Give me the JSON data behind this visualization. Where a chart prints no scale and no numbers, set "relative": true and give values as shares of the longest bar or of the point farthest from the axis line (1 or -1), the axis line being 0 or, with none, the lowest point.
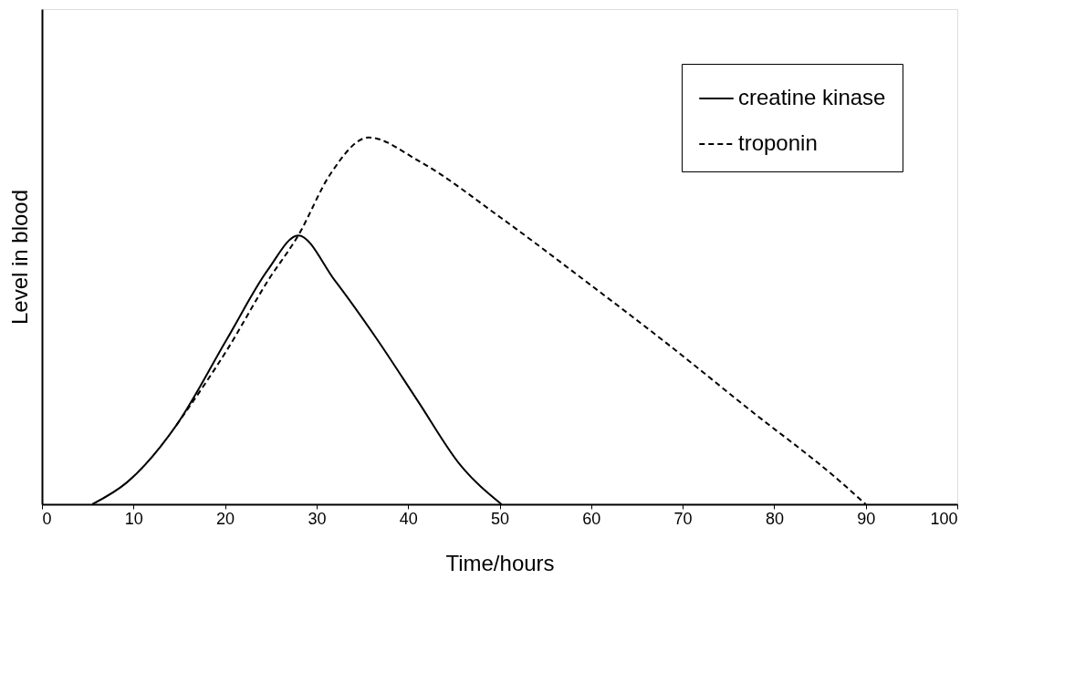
{
  "chart_data": {
    "type": "line",
    "xlabel": "Time/hours",
    "ylabel": "Level in blood",
    "relative": true,
    "xlim": [
      0,
      100
    ],
    "xticks": [
      0,
      10,
      20,
      30,
      40,
      50,
      60,
      70,
      80,
      90,
      100
    ],
    "grid": false,
    "legend": "top right",
    "marker": "none",
    "series": [
      {
        "name": "creatine kinase",
        "color": "#000000",
        "line_style": "solid",
        "x": [
          5.5,
          9.3,
          14.7,
          20.2,
          24.7,
          28,
          32,
          36.6,
          41.1,
          45.7,
          50.2
        ],
        "values": [
          0,
          0.06,
          0.216,
          0.45,
          0.64,
          0.733,
          0.61,
          0.45,
          0.28,
          0.107,
          0
        ]
      },
      {
        "name": "troponin",
        "color": "#000000",
        "line_style": "dashed",
        "x": [
          14.7,
          20.2,
          24.7,
          28,
          31.5,
          35.7,
          41.1,
          50.2,
          59.3,
          68.4,
          77.5,
          86.6,
          90
        ],
        "values": [
          0.216,
          0.42,
          0.61,
          0.733,
          0.9,
          1,
          0.937,
          0.78,
          0.61,
          0.436,
          0.254,
          0.075,
          0
        ]
      }
    ]
  }
}
